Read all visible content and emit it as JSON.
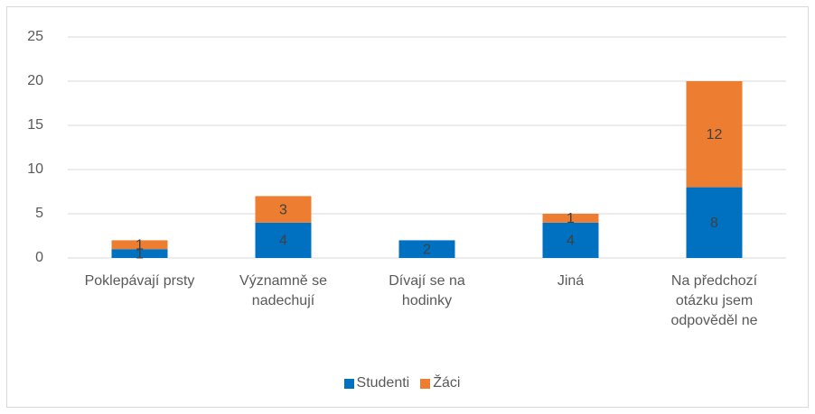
{
  "chart_data": {
    "type": "bar",
    "stacked": true,
    "categories": [
      "Poklepávají prsty",
      "Významně se nadechují",
      "Dívají se na hodinky",
      "Jiná",
      "Na předchozí otázku jsem odpověděl ne"
    ],
    "series": [
      {
        "name": "Studenti",
        "color": "#0070c0",
        "values": [
          1,
          4,
          2,
          4,
          8
        ]
      },
      {
        "name": "Žáci",
        "color": "#ed7d31",
        "values": [
          1,
          3,
          0,
          1,
          12
        ]
      }
    ],
    "ylim": [
      0,
      25
    ],
    "yticks": [
      0,
      5,
      10,
      15,
      20,
      25
    ],
    "grid": true,
    "legend": "bottom"
  }
}
